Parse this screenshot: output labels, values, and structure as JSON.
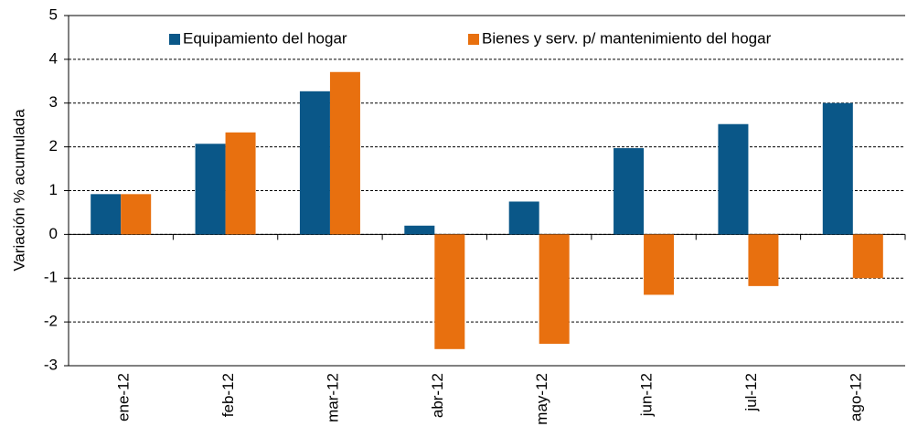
{
  "chart_data": {
    "type": "bar",
    "y_label": "Variación % acumulada",
    "categories": [
      "ene-12",
      "feb-12",
      "mar-12",
      "abr-12",
      "may-12",
      "jun-12",
      "jul-12",
      "ago-12"
    ],
    "series": [
      {
        "name": "Equipamiento del hogar",
        "color": "#0a5788",
        "values": [
          0.92,
          2.07,
          3.27,
          0.2,
          0.75,
          1.97,
          2.52,
          3.0
        ]
      },
      {
        "name": "Bienes y serv. p/ mantenimiento del hogar",
        "color": "#e8700f",
        "values": [
          0.92,
          2.33,
          3.71,
          -2.62,
          -2.5,
          -1.38,
          -1.18,
          -1.0
        ]
      }
    ],
    "ylim": [
      -3,
      5
    ],
    "yticks": [
      -3,
      -2,
      -1,
      0,
      1,
      2,
      3,
      4,
      5
    ],
    "grid": true,
    "legend": "top"
  }
}
